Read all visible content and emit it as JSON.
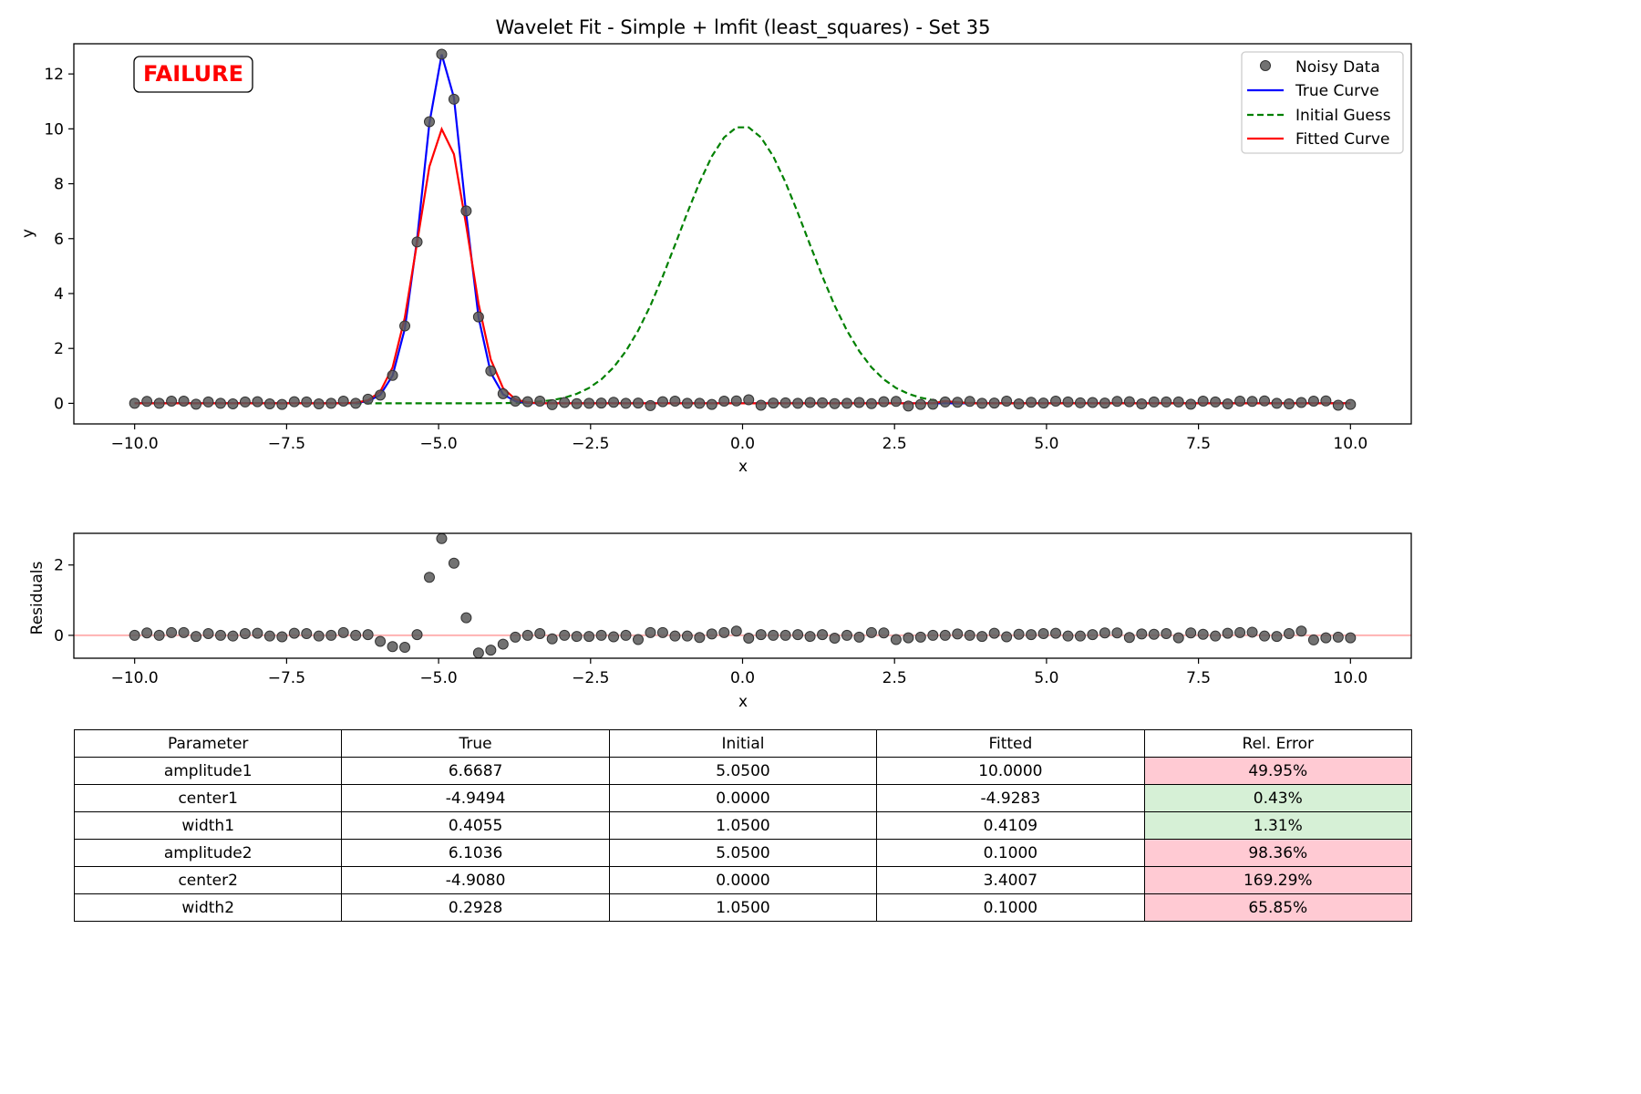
{
  "chart_data": [
    {
      "type": "scatter",
      "title": "Wavelet Fit - Simple + lmfit (least_squares) - Set 35",
      "xlabel": "x",
      "ylabel": "y",
      "xlim": [
        -11,
        11
      ],
      "ylim": [
        -0.75,
        13.1
      ],
      "xticks": [
        -10,
        -7.5,
        -5,
        -2.5,
        0,
        2.5,
        5,
        7.5,
        10
      ],
      "xtick_labels": [
        "−10.0",
        "−7.5",
        "−5.0",
        "−2.5",
        "0.0",
        "2.5",
        "5.0",
        "7.5",
        "10.0"
      ],
      "yticks": [
        0,
        2,
        4,
        6,
        8,
        10,
        12
      ],
      "ytick_labels": [
        "0",
        "2",
        "4",
        "6",
        "8",
        "10",
        "12"
      ],
      "status_badge": "FAILURE",
      "legend_position": "top-right",
      "colors": {
        "data": "#595959",
        "true": "#0000ff",
        "initial": "#008000",
        "fitted": "#ff0000"
      },
      "series": [
        {
          "name": "Noisy Data",
          "kind": "scatter",
          "x_start": -10,
          "x_step": 0.20202,
          "values": [
            0.0,
            0.07,
            0.0,
            0.08,
            0.08,
            -0.03,
            0.05,
            0.0,
            -0.02,
            0.05,
            0.06,
            -0.02,
            -0.04,
            0.06,
            0.05,
            -0.02,
            0.0,
            0.08,
            0.0,
            0.15,
            0.3,
            1.02,
            2.82,
            5.88,
            10.26,
            12.72,
            11.08,
            7.01,
            3.15,
            1.18,
            0.35,
            0.08,
            0.06,
            0.08,
            -0.05,
            0.03,
            -0.01,
            0.0,
            0.01,
            0.04,
            0.0,
            0.01,
            -0.08,
            0.06,
            0.08,
            0.0,
            0.0,
            -0.04,
            0.08,
            0.09,
            0.13,
            -0.07,
            0.01,
            0.02,
            0.0,
            0.03,
            0.02,
            -0.01,
            0.0,
            0.03,
            -0.01,
            0.06,
            0.07,
            -0.1,
            -0.04,
            -0.03,
            0.05,
            0.04,
            0.07,
            0.0,
            0.01,
            0.08,
            -0.02,
            0.04,
            0.01,
            0.08,
            0.05,
            0.02,
            0.03,
            0.01,
            0.07,
            0.06,
            -0.02,
            0.05,
            0.05,
            0.05,
            -0.03,
            0.08,
            0.05,
            -0.02,
            0.08,
            0.07,
            0.09,
            0.0,
            -0.02,
            0.03,
            0.08,
            0.09,
            -0.07,
            -0.04
          ]
        },
        {
          "name": "True Curve",
          "kind": "line",
          "params": {
            "amplitude1": 6.6687,
            "center1": -4.9494,
            "width1": 0.4055,
            "amplitude2": 6.1036,
            "center2": -4.908,
            "width2": 0.2928
          }
        },
        {
          "name": "Initial Guess",
          "kind": "line-dashed",
          "params": {
            "amplitude1": 5.05,
            "center1": 0.0,
            "width1": 1.05,
            "amplitude2": 5.05,
            "center2": 0.0,
            "width2": 1.05
          }
        },
        {
          "name": "Fitted Curve",
          "kind": "line",
          "params": {
            "amplitude1": 10.0,
            "center1": -4.9283,
            "width1": 0.4109,
            "amplitude2": 0.1,
            "center2": 3.4007,
            "width2": 0.1
          }
        }
      ]
    },
    {
      "type": "scatter",
      "xlabel": "x",
      "ylabel": "Residuals",
      "xlim": [
        -11,
        11
      ],
      "ylim": [
        -0.65,
        2.9
      ],
      "xticks": [
        -10,
        -7.5,
        -5,
        -2.5,
        0,
        2.5,
        5,
        7.5,
        10
      ],
      "xtick_labels": [
        "−10.0",
        "−7.5",
        "−5.0",
        "−2.5",
        "0.0",
        "2.5",
        "5.0",
        "7.5",
        "10.0"
      ],
      "yticks": [
        0,
        2
      ],
      "ytick_labels": [
        "0",
        "2"
      ],
      "reference_line_y": 0,
      "series": [
        {
          "name": "Residuals",
          "kind": "scatter",
          "x_start": -10,
          "x_step": 0.20202,
          "values": [
            0.0,
            0.07,
            0.0,
            0.08,
            0.08,
            -0.03,
            0.05,
            0.0,
            -0.02,
            0.05,
            0.06,
            -0.02,
            -0.04,
            0.06,
            0.05,
            -0.02,
            0.0,
            0.08,
            0.0,
            0.02,
            -0.17,
            -0.32,
            -0.34,
            0.02,
            1.65,
            2.75,
            2.05,
            0.5,
            -0.5,
            -0.42,
            -0.25,
            -0.05,
            0.0,
            0.05,
            -0.1,
            0.0,
            -0.03,
            -0.03,
            0.0,
            -0.04,
            0.0,
            -0.12,
            0.08,
            0.08,
            -0.02,
            -0.02,
            -0.06,
            0.04,
            0.08,
            0.12,
            -0.08,
            0.02,
            0.0,
            0.0,
            0.02,
            -0.03,
            0.02,
            -0.08,
            0.0,
            -0.05,
            0.08,
            0.07,
            -0.12,
            -0.07,
            -0.05,
            0.0,
            0.0,
            0.04,
            0.0,
            -0.03,
            0.06,
            -0.04,
            0.03,
            0.02,
            0.05,
            0.06,
            -0.02,
            -0.02,
            0.02,
            0.07,
            0.07,
            -0.06,
            0.04,
            0.03,
            0.05,
            -0.07,
            0.07,
            0.03,
            -0.02,
            0.06,
            0.08,
            0.09,
            -0.02,
            -0.03,
            0.05,
            0.12,
            -0.13,
            -0.07,
            -0.05,
            -0.07
          ]
        }
      ]
    },
    {
      "type": "table",
      "columns": [
        "Parameter",
        "True",
        "Initial",
        "Fitted",
        "Rel. Error"
      ],
      "rows": [
        {
          "param": "amplitude1",
          "true": "6.6687",
          "initial": "5.0500",
          "fitted": "10.0000",
          "error": "49.95%",
          "status": "bad"
        },
        {
          "param": "center1",
          "true": "-4.9494",
          "initial": "0.0000",
          "fitted": "-4.9283",
          "error": "0.43%",
          "status": "good"
        },
        {
          "param": "width1",
          "true": "0.4055",
          "initial": "1.0500",
          "fitted": "0.4109",
          "error": "1.31%",
          "status": "good"
        },
        {
          "param": "amplitude2",
          "true": "6.1036",
          "initial": "5.0500",
          "fitted": "0.1000",
          "error": "98.36%",
          "status": "bad"
        },
        {
          "param": "center2",
          "true": "-4.9080",
          "initial": "0.0000",
          "fitted": "3.4007",
          "error": "169.29%",
          "status": "bad"
        },
        {
          "param": "width2",
          "true": "0.2928",
          "initial": "1.0500",
          "fitted": "0.1000",
          "error": "65.85%",
          "status": "bad"
        }
      ],
      "status_colors": {
        "good": "#d6f0d6",
        "bad": "#ffcad3"
      }
    }
  ]
}
